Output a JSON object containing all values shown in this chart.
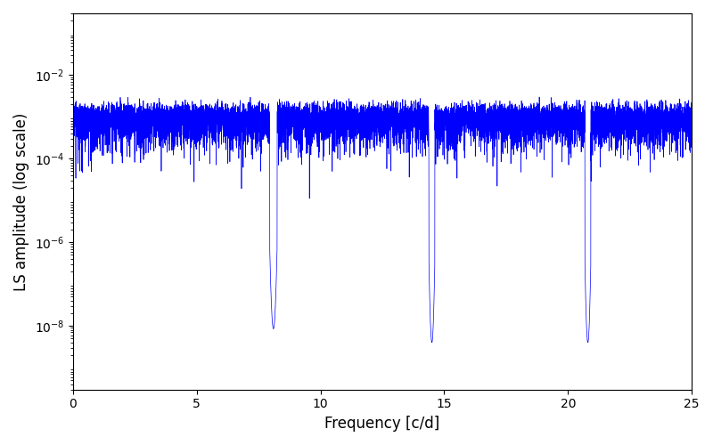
{
  "xlabel": "Frequency [c/d]",
  "ylabel": "LS amplitude (log scale)",
  "line_color": "#0000ff",
  "line_width": 0.5,
  "xlim": [
    0,
    25
  ],
  "ylim": [
    3e-10,
    0.3
  ],
  "yscale": "log",
  "figsize": [
    8.0,
    5.0
  ],
  "dpi": 100,
  "freq_max": 25.0,
  "n_points": 10000,
  "seed": 7,
  "yticks": [
    1e-08,
    1e-06,
    0.0001,
    0.01
  ],
  "xticks": [
    0,
    5,
    10,
    15,
    20,
    25
  ]
}
